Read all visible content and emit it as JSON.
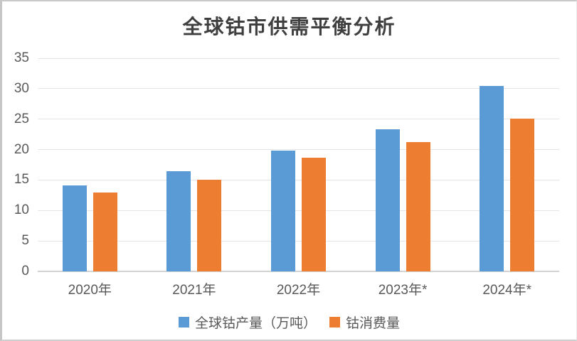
{
  "page": {
    "title": "全球钴市供需平衡分析"
  },
  "chart_data": {
    "type": "bar",
    "title": "全球钴市供需平衡分析",
    "categories": [
      "2020年",
      "2021年",
      "2022年",
      "2023年*",
      "2024年*"
    ],
    "series": [
      {
        "name": "全球钴产量（万吨）",
        "color": "#5B9BD5",
        "values": [
          14.1,
          16.5,
          19.8,
          23.3,
          30.4
        ]
      },
      {
        "name": "钴消费量",
        "color": "#ED7D31",
        "values": [
          13.0,
          15.1,
          18.7,
          21.2,
          25.1
        ]
      }
    ],
    "xlabel": "",
    "ylabel": "",
    "ylim": [
      0,
      35
    ],
    "yticks": [
      0,
      5,
      10,
      15,
      20,
      25,
      30,
      35
    ],
    "grid": true,
    "legend_position": "bottom"
  },
  "colors": {
    "grid": "#E4E4E4",
    "axis_line": "#D2D2D2",
    "axis_text": "#595959",
    "title_text": "#3F3F3F"
  }
}
